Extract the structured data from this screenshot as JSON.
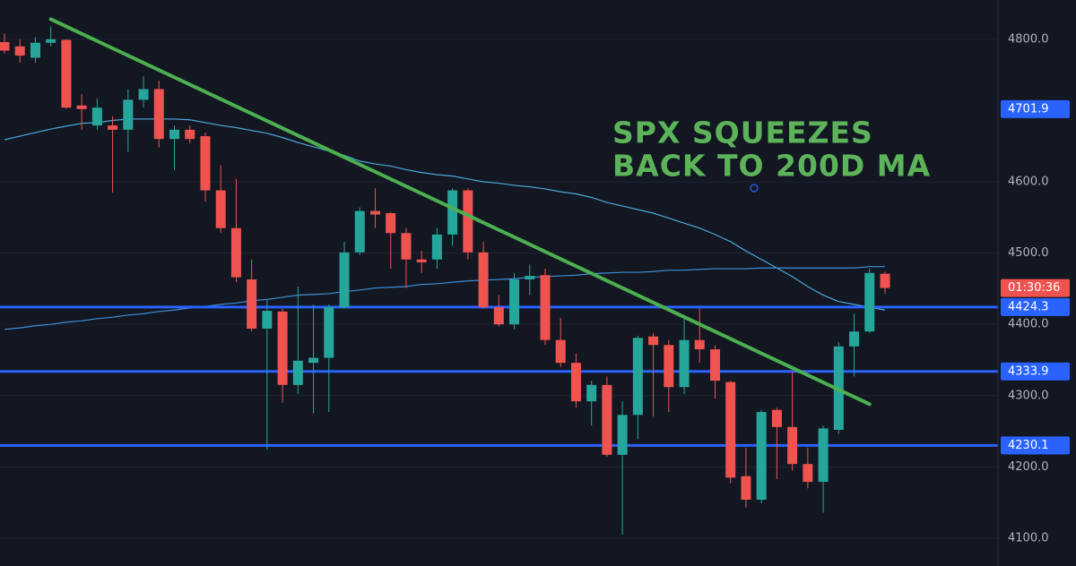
{
  "chart_data": {
    "type": "candlestick",
    "annotation": [
      "SPX SQUEEZES",
      "BACK TO 200D MA"
    ],
    "up_color": "#26a69a",
    "down_color": "#ef5350",
    "open": [
      4796,
      4790,
      4774,
      4795,
      4799,
      4707,
      4679,
      4679,
      4673,
      4715,
      4730,
      4660,
      4673,
      4664,
      4588,
      4535,
      4463,
      4394,
      4418,
      4315,
      4346,
      4353,
      4424,
      4501,
      4559,
      4556,
      4528,
      4491,
      4491,
      4526,
      4588,
      4501,
      4424,
      4400,
      4463,
      4469,
      4378,
      4346,
      4292,
      4315,
      4217,
      4273,
      4383,
      4371,
      4312,
      4378,
      4365,
      4319,
      4187,
      4154,
      4280,
      4256,
      4204,
      4179,
      4252,
      4369,
      4390,
      4471
    ],
    "high": [
      4808,
      4800,
      4803,
      4818,
      4800,
      4723,
      4717,
      4692,
      4730,
      4748,
      4742,
      4679,
      4679,
      4669,
      4623,
      4604,
      4491,
      4434,
      4422,
      4453,
      4428,
      4428,
      4516,
      4564,
      4591,
      4557,
      4535,
      4503,
      4535,
      4591,
      4591,
      4516,
      4441,
      4472,
      4484,
      4478,
      4409,
      4359,
      4321,
      4327,
      4292,
      4384,
      4388,
      4378,
      4409,
      4422,
      4371,
      4321,
      4227,
      4280,
      4283,
      4334,
      4227,
      4258,
      4375,
      4415,
      4478,
      4474
    ],
    "low": [
      4780,
      4767,
      4767,
      4790,
      4702,
      4673,
      4673,
      4585,
      4642,
      4704,
      4648,
      4616,
      4654,
      4572,
      4528,
      4459,
      4390,
      4224,
      4290,
      4302,
      4275,
      4277,
      4422,
      4497,
      4535,
      4478,
      4451,
      4472,
      4478,
      4510,
      4491,
      4422,
      4397,
      4393,
      4441,
      4371,
      4340,
      4283,
      4258,
      4214,
      4105,
      4239,
      4271,
      4277,
      4302,
      4346,
      4296,
      4177,
      4143,
      4149,
      4183,
      4195,
      4170,
      4136,
      4246,
      4327,
      4388,
      4443
    ],
    "close": [
      4784,
      4777,
      4795,
      4800,
      4704,
      4702,
      4704,
      4673,
      4715,
      4730,
      4660,
      4673,
      4660,
      4588,
      4535,
      4466,
      4394,
      4419,
      4315,
      4349,
      4353,
      4424,
      4501,
      4559,
      4554,
      4528,
      4491,
      4487,
      4526,
      4588,
      4501,
      4424,
      4400,
      4463,
      4468,
      4378,
      4346,
      4292,
      4315,
      4217,
      4273,
      4381,
      4371,
      4312,
      4378,
      4365,
      4321,
      4185,
      4154,
      4277,
      4256,
      4204,
      4179,
      4254,
      4369,
      4390,
      4472,
      4451
    ],
    "series": [
      {
        "color": "#4aa8d8",
        "values": [
          4659,
          4664,
          4669,
          4674,
          4678,
          4682,
          4683,
          4686,
          4688,
          4688,
          4688,
          4688,
          4687,
          4683,
          4679,
          4676,
          4672,
          4668,
          4662,
          4655,
          4649,
          4643,
          4637,
          4629,
          4625,
          4622,
          4617,
          4613,
          4610,
          4608,
          4604,
          4600,
          4598,
          4595,
          4593,
          4590,
          4586,
          4583,
          4578,
          4571,
          4566,
          4561,
          4556,
          4549,
          4542,
          4535,
          4526,
          4516,
          4503,
          4491,
          4479,
          4467,
          4453,
          4441,
          4432,
          4428,
          4424,
          4420
        ]
      },
      {
        "color": "#3d8fd6",
        "values": [
          4393,
          4395,
          4398,
          4400,
          4403,
          4405,
          4408,
          4410,
          4413,
          4415,
          4418,
          4420,
          4423,
          4425,
          4428,
          4430,
          4433,
          4435,
          4438,
          4441,
          4442,
          4443,
          4446,
          4448,
          4451,
          4452,
          4453,
          4456,
          4457,
          4459,
          4461,
          4462,
          4463,
          4464,
          4466,
          4467,
          4468,
          4469,
          4471,
          4472,
          4473,
          4473,
          4474,
          4476,
          4476,
          4477,
          4478,
          4478,
          4478,
          4479,
          4479,
          4479,
          4479,
          4479,
          4479,
          4479,
          4481,
          4481
        ]
      }
    ],
    "trendline": {
      "color": "#4caf50",
      "start": {
        "index": 3,
        "value": 4828
      },
      "end": {
        "index": 56,
        "value": 4288
      }
    },
    "levels": [
      {
        "value": 4701.9,
        "line": false
      },
      {
        "value": 4424.3,
        "line": true
      },
      {
        "value": 4333.9,
        "line": true
      },
      {
        "value": 4230.1,
        "line": true
      }
    ],
    "level_color": "#2962ff",
    "countdown": "01:30:36",
    "ylim": [
      4061,
      4855
    ],
    "yticks": [
      {
        "value": 4100,
        "label": "4100.0"
      },
      {
        "value": 4200,
        "label": "4200.0"
      },
      {
        "value": 4300,
        "label": "4300.0"
      },
      {
        "value": 4400,
        "label": "4400.0"
      },
      {
        "value": 4500,
        "label": "4500.0"
      },
      {
        "value": 4600,
        "label": "4600.0"
      },
      {
        "value": 4800,
        "label": "4800.0"
      }
    ],
    "grid": true
  }
}
